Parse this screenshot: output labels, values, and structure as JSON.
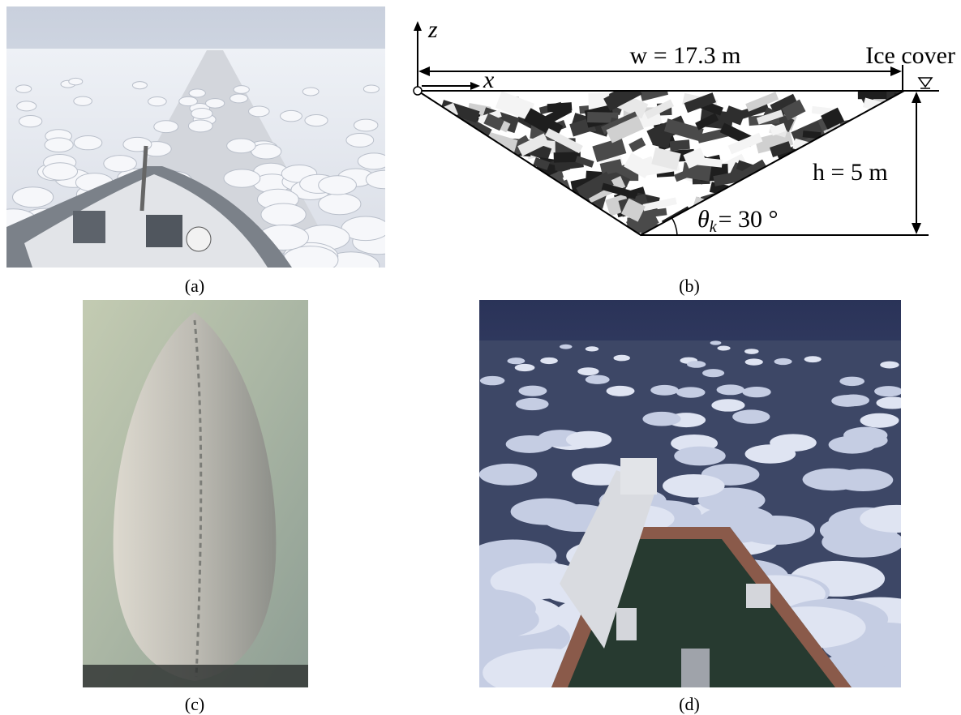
{
  "panels": {
    "a": {
      "label": "(a)"
    },
    "b": {
      "label": "(b)",
      "z_axis": "z",
      "x_axis": "x",
      "width_label": "w = 17.3 m",
      "cover_label": "Ice cover",
      "height_label": "h = 5 m",
      "angle_label": {
        "symbol": "θ",
        "subscript": "k",
        "text": "= 30 °"
      }
    },
    "c": {
      "label": "(c)"
    },
    "d": {
      "label": "(d)"
    }
  }
}
